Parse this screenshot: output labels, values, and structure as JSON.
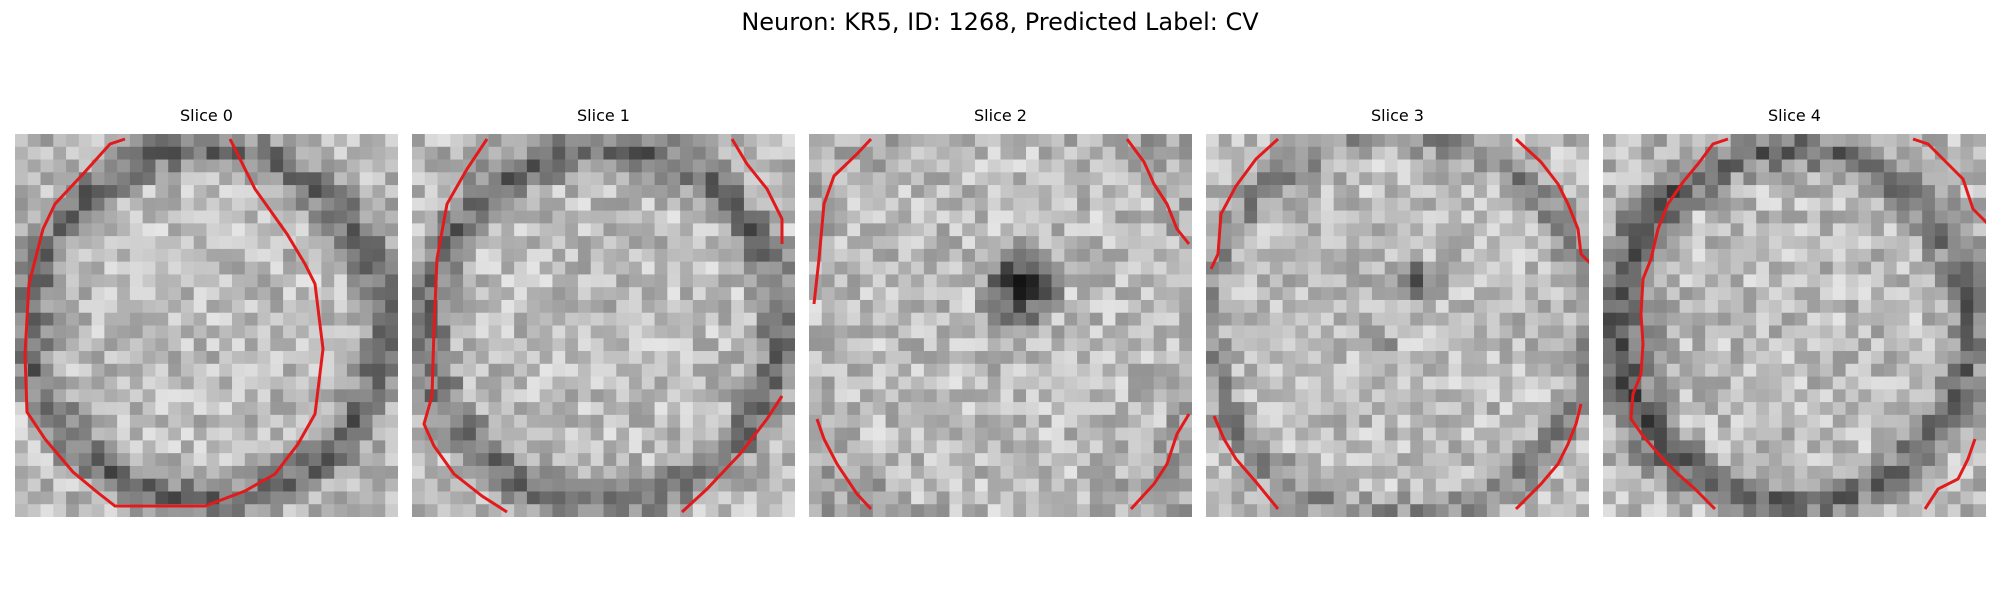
{
  "figure": {
    "title": "Neuron: KR5, ID: 1268, Predicted Label: CV"
  },
  "contour_color": "#e31a1c",
  "panels": [
    {
      "title": "Slice 0",
      "pattern": "ring-full"
    },
    {
      "title": "Slice 1",
      "pattern": "ring-partial"
    },
    {
      "title": "Slice 2",
      "pattern": "center-dark"
    },
    {
      "title": "Slice 3",
      "pattern": "center-spot"
    },
    {
      "title": "Slice 4",
      "pattern": "ring-left"
    }
  ]
}
